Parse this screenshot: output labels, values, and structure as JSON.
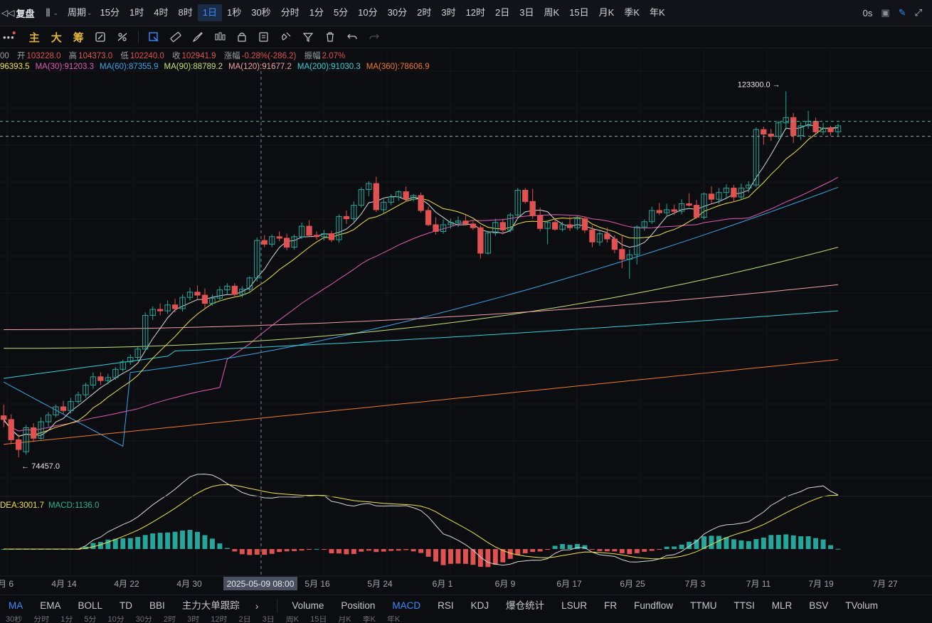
{
  "top_bar": {
    "brand": "复盘",
    "period_label": "周期",
    "intervals": [
      "15分",
      "1时",
      "4时",
      "8时",
      "1日",
      "1秒",
      "30秒",
      "分时",
      "1分",
      "5分",
      "10分",
      "30分",
      "2时",
      "3时",
      "12时",
      "2日",
      "3日",
      "周K",
      "15日",
      "月K",
      "季K",
      "年K"
    ],
    "active_interval": "1日",
    "countdown": "0s"
  },
  "drawing_toolbar": {
    "labels": [
      "主",
      "大",
      "筹"
    ]
  },
  "ohlc": {
    "first_value": "00",
    "items": [
      {
        "label": "开",
        "value": "103228.0"
      },
      {
        "label": "高",
        "value": "104373.0"
      },
      {
        "label": "低",
        "value": "102240.0"
      },
      {
        "label": "收",
        "value": "102941.9"
      },
      {
        "label": "涨幅",
        "value": "-0.28%(-286.2)"
      },
      {
        "label": "振幅",
        "value": "2.07%"
      }
    ]
  },
  "ma_legend": [
    {
      "text": "96393.5",
      "color": "#f0e34a"
    },
    {
      "text": "MA(30):91203.3",
      "color": "#e05bb5"
    },
    {
      "text": "MA(60):87355.9",
      "color": "#3aa6e8"
    },
    {
      "text": "MA(90):88789.2",
      "color": "#c5e07a"
    },
    {
      "text": "MA(120):91677.2",
      "color": "#f0a0a8"
    },
    {
      "text": "MA(200):91030.3",
      "color": "#34d1d8"
    },
    {
      "text": "MA(360):78606.9",
      "color": "#f07a2a"
    }
  ],
  "macd_legend": [
    {
      "text": "DEA:3001.7",
      "color": "#f0e34a"
    },
    {
      "text": "MACD:1136.0",
      "color": "#28b48a"
    }
  ],
  "chart_labels": {
    "high_marker": "123300.0 →",
    "low_marker": "← 74457.0"
  },
  "crosshair_date": "2025-05-09 08:00",
  "x_axis_labels": [
    "月 6",
    "4月 14",
    "4月 22",
    "4月 30",
    "5月 16",
    "5月 24",
    "6月 1",
    "6月 9",
    "6月 17",
    "6月 25",
    "7月 3",
    "7月 11",
    "7月 19",
    "7月 27"
  ],
  "bottom_bar": {
    "overlays": [
      "MA",
      "EMA",
      "BOLL",
      "TD",
      "BBI",
      "主力大单跟踪"
    ],
    "active_overlay": "MA",
    "indicators": [
      "Volume",
      "Position",
      "MACD",
      "RSI",
      "KDJ",
      "爆仓统计",
      "LSUR",
      "FR",
      "Fundflow",
      "TTMU",
      "TTSI",
      "MLR",
      "BSV",
      "TVolum"
    ],
    "active_indicator": "MACD"
  },
  "partial_bar": [
    "30秒",
    "分时",
    "1分",
    "5分",
    "10分",
    "30分",
    "2时",
    "3时",
    "12时",
    "2日",
    "3日",
    "周K",
    "15日",
    "月K",
    "季K",
    "年K"
  ],
  "colors": {
    "up": "#26a69a",
    "down": "#e05252",
    "accent": "#3a8bff",
    "bg": "#0c0d10"
  },
  "chart_data": {
    "type": "candlestick",
    "title": "",
    "candles": [
      [
        80000,
        81500,
        78500,
        79500
      ],
      [
        79500,
        80200,
        76200,
        76800
      ],
      [
        76800,
        77500,
        74457,
        75500
      ],
      [
        75200,
        78800,
        74800,
        78400
      ],
      [
        78400,
        79000,
        76500,
        77000
      ],
      [
        77000,
        79800,
        76800,
        79200
      ],
      [
        79200,
        80500,
        78600,
        80100
      ],
      [
        80100,
        81500,
        79800,
        81200
      ],
      [
        81200,
        82000,
        80200,
        80700
      ],
      [
        80700,
        82400,
        80300,
        81900
      ],
      [
        81900,
        83200,
        81600,
        82800
      ],
      [
        82800,
        84400,
        82400,
        84100
      ],
      [
        84100,
        85800,
        83600,
        85200
      ],
      [
        85200,
        85800,
        84100,
        84700
      ],
      [
        84700,
        85600,
        84200,
        85100
      ],
      [
        85100,
        86500,
        84800,
        86200
      ],
      [
        86200,
        87500,
        85900,
        87200
      ],
      [
        87200,
        88200,
        86800,
        87800
      ],
      [
        87800,
        89200,
        87400,
        88900
      ],
      [
        88900,
        93800,
        88600,
        93400
      ],
      [
        93400,
        94600,
        92800,
        94200
      ],
      [
        94200,
        95000,
        93400,
        94000
      ],
      [
        94000,
        95400,
        93600,
        94800
      ],
      [
        94800,
        95600,
        93800,
        94300
      ],
      [
        94300,
        96200,
        93900,
        95800
      ],
      [
        95800,
        97100,
        95400,
        96500
      ],
      [
        96500,
        97400,
        95600,
        96100
      ],
      [
        96100,
        97000,
        94400,
        95000
      ],
      [
        95000,
        96200,
        94700,
        95700
      ],
      [
        95700,
        97300,
        95300,
        96800
      ],
      [
        96800,
        97700,
        96200,
        97300
      ],
      [
        97300,
        97700,
        95800,
        96200
      ],
      [
        96200,
        97300,
        95800,
        96900
      ],
      [
        96900,
        98600,
        96600,
        98400
      ],
      [
        98400,
        103800,
        97900,
        103400
      ],
      [
        103400,
        104100,
        102500,
        102900
      ],
      [
        102900,
        104200,
        102500,
        103900
      ],
      [
        103900,
        104600,
        103300,
        103700
      ],
      [
        103700,
        104300,
        102100,
        102500
      ],
      [
        102500,
        104200,
        102200,
        103900
      ],
      [
        103900,
        105800,
        103600,
        105300
      ],
      [
        105300,
        106100,
        103900,
        104100
      ],
      [
        104100,
        104600,
        103500,
        103900
      ],
      [
        103900,
        104800,
        103400,
        104300
      ],
      [
        104300,
        104700,
        103200,
        103500
      ],
      [
        103500,
        106900,
        103100,
        106600
      ],
      [
        106600,
        107400,
        105600,
        106300
      ],
      [
        106300,
        108600,
        105900,
        108100
      ],
      [
        108100,
        110500,
        107800,
        110200
      ],
      [
        110200,
        111300,
        109300,
        111000
      ],
      [
        111000,
        111900,
        107200,
        107500
      ],
      [
        107500,
        108900,
        107000,
        108500
      ],
      [
        108500,
        109600,
        108100,
        109200
      ],
      [
        109200,
        110100,
        108700,
        109900
      ],
      [
        109900,
        110600,
        108600,
        108900
      ],
      [
        108900,
        109600,
        108600,
        109400
      ],
      [
        109400,
        109800,
        107100,
        107400
      ],
      [
        107400,
        107900,
        105300,
        105500
      ],
      [
        105500,
        106500,
        104200,
        104600
      ],
      [
        104600,
        106200,
        104300,
        105500
      ],
      [
        105500,
        106300,
        105000,
        105800
      ],
      [
        105800,
        106600,
        105200,
        106000
      ],
      [
        106000,
        106800,
        105400,
        105600
      ],
      [
        105600,
        106000,
        104800,
        105100
      ],
      [
        105100,
        105400,
        101000,
        101700
      ],
      [
        101700,
        104700,
        101500,
        104400
      ],
      [
        104400,
        106300,
        104000,
        105800
      ],
      [
        105800,
        106300,
        104200,
        104800
      ],
      [
        104800,
        107100,
        104500,
        106800
      ],
      [
        106800,
        110400,
        106500,
        110100
      ],
      [
        110100,
        110400,
        108300,
        108600
      ],
      [
        108600,
        110300,
        106300,
        106700
      ],
      [
        106700,
        107800,
        104600,
        105000
      ],
      [
        105000,
        106000,
        102900,
        105800
      ],
      [
        105800,
        106400,
        104700,
        104900
      ],
      [
        104900,
        105900,
        104600,
        105500
      ],
      [
        105500,
        106600,
        104700,
        105100
      ],
      [
        105100,
        106700,
        104800,
        106300
      ],
      [
        106300,
        106600,
        104400,
        104800
      ],
      [
        104800,
        105400,
        102500,
        103200
      ],
      [
        103200,
        104600,
        102700,
        104300
      ],
      [
        104300,
        105100,
        103100,
        103600
      ],
      [
        103600,
        104100,
        101700,
        102200
      ],
      [
        102200,
        104200,
        99700,
        100900
      ],
      [
        100900,
        102200,
        98300,
        101500
      ],
      [
        101500,
        105400,
        100200,
        105200
      ],
      [
        105200,
        106200,
        104700,
        105900
      ],
      [
        105900,
        107900,
        105600,
        107400
      ],
      [
        107400,
        108400,
        106800,
        107100
      ],
      [
        107100,
        108300,
        106600,
        107500
      ],
      [
        107500,
        108200,
        106800,
        107300
      ],
      [
        107300,
        108900,
        106900,
        108300
      ],
      [
        108300,
        109700,
        107900,
        108100
      ],
      [
        108100,
        108800,
        106300,
        106500
      ],
      [
        106500,
        109800,
        106200,
        109600
      ],
      [
        109600,
        110600,
        108300,
        108900
      ],
      [
        108900,
        110400,
        108300,
        109800
      ],
      [
        109800,
        110900,
        108900,
        110400
      ],
      [
        110400,
        110800,
        108600,
        109200
      ],
      [
        109200,
        111000,
        108900,
        110400
      ],
      [
        110400,
        111300,
        109800,
        110800
      ],
      [
        110800,
        118500,
        110500,
        118200
      ],
      [
        118200,
        118600,
        116200,
        117600
      ],
      [
        117600,
        118300,
        116700,
        117300
      ],
      [
        117300,
        119400,
        116900,
        119100
      ],
      [
        119100,
        123300,
        118200,
        119800
      ],
      [
        119800,
        120400,
        116400,
        117400
      ],
      [
        117400,
        119200,
        116800,
        118700
      ],
      [
        118700,
        120700,
        118300,
        119300
      ],
      [
        119300,
        119800,
        117700,
        117900
      ],
      [
        117900,
        119100,
        117500,
        118400
      ],
      [
        118400,
        118700,
        117400,
        117900
      ],
      [
        117900,
        119000,
        117300,
        118700
      ]
    ],
    "high": 123300.0,
    "low": 74457.0,
    "y_range": [
      70000,
      126000
    ],
    "moving_averages": [
      {
        "name": "MA(30)",
        "last": 91203.3
      },
      {
        "name": "MA(60)",
        "last": 87355.9
      },
      {
        "name": "MA(90)",
        "last": 88789.2
      },
      {
        "name": "MA(120)",
        "last": 91677.2
      },
      {
        "name": "MA(200)",
        "last": 91030.3
      },
      {
        "name": "MA(360)",
        "last": 78606.9
      }
    ],
    "macd": {
      "dea": 3001.7,
      "macd": 1136.0
    }
  }
}
